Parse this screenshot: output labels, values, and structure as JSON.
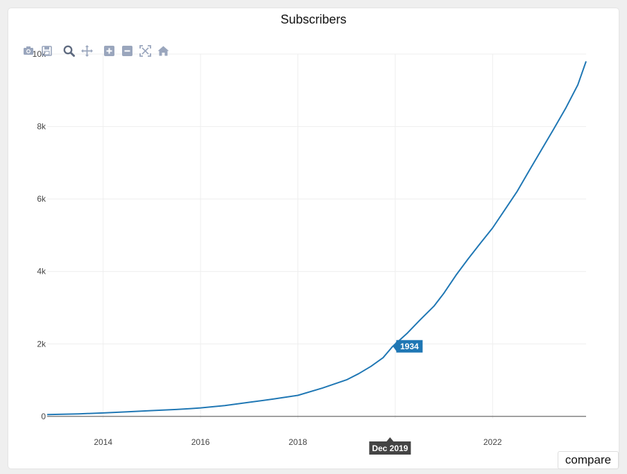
{
  "chart_data": {
    "type": "line",
    "title": "Subscribers",
    "xlabel": "",
    "ylabel": "",
    "xlim": [
      2012.85,
      2023.92
    ],
    "ylim": [
      -60,
      10000
    ],
    "xticks": [
      2014,
      2016,
      2018,
      2020,
      2022
    ],
    "xtick_labels": [
      "2014",
      "2016",
      "2018",
      "",
      "2022"
    ],
    "yticks": [
      0,
      2000,
      4000,
      6000,
      8000,
      10000
    ],
    "ytick_labels": [
      "0",
      "2k",
      "4k",
      "6k",
      "8k",
      "10k"
    ],
    "grid": true,
    "line_color": "#1f77b4",
    "series": [
      {
        "x": [
          2012.85,
          2013.5,
          2014.0,
          2014.5,
          2015.0,
          2015.5,
          2015.8,
          2016.0,
          2016.5,
          2017.0,
          2017.5,
          2018.0,
          2018.5,
          2019.0,
          2019.25,
          2019.5,
          2019.75,
          2019.95,
          2020.25,
          2020.5,
          2020.8,
          2021.0,
          2021.25,
          2021.5,
          2021.75,
          2022.0,
          2022.25,
          2022.5,
          2022.75,
          2023.0,
          2023.25,
          2023.5,
          2023.75,
          2023.92
        ],
        "y": [
          50,
          70,
          95,
          125,
          160,
          190,
          215,
          235,
          300,
          390,
          480,
          580,
          780,
          1010,
          1180,
          1380,
          1620,
          1934,
          2300,
          2650,
          3050,
          3400,
          3900,
          4350,
          4780,
          5200,
          5700,
          6200,
          6780,
          7350,
          7920,
          8500,
          9150,
          9800
        ]
      }
    ],
    "hover": {
      "x_label": "Dec 2019",
      "value_label": "1934",
      "x": 2019.95,
      "y": 1934
    }
  },
  "modebar": [
    "camera-icon",
    "save-icon",
    "zoom-icon",
    "pan-icon",
    "zoom-in-icon",
    "zoom-out-icon",
    "autoscale-icon",
    "home-icon"
  ],
  "compare_label": "compare"
}
